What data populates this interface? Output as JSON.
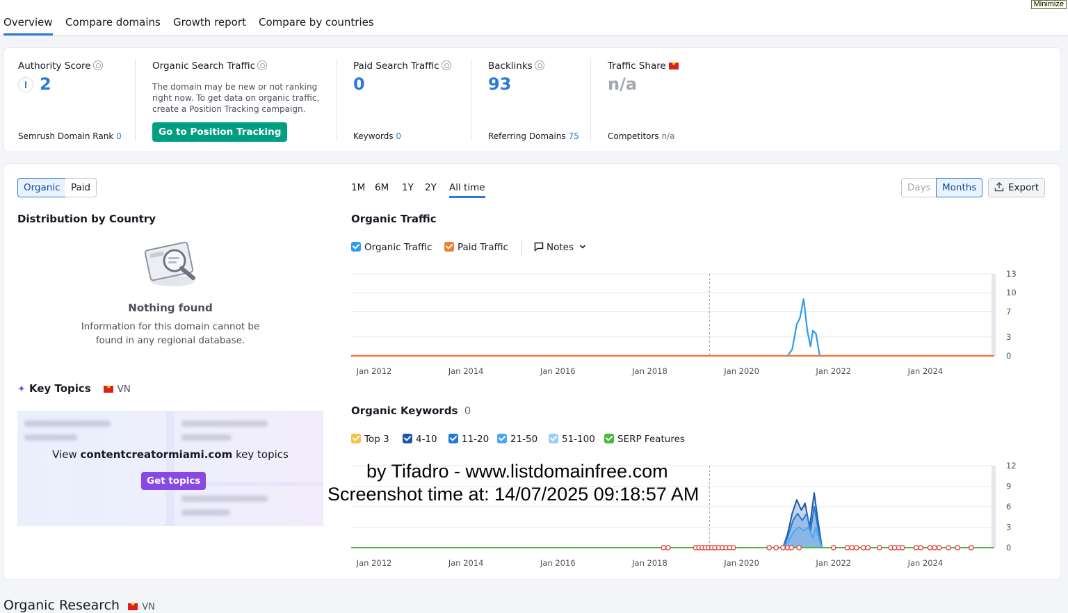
{
  "window": {
    "minimize_label": "Minimize"
  },
  "tabs": [
    {
      "label": "Overview"
    },
    {
      "label": "Compare domains"
    },
    {
      "label": "Growth report"
    },
    {
      "label": "Compare by countries"
    }
  ],
  "metrics": {
    "authority": {
      "label": "Authority Score",
      "value": "2",
      "rank_label": "Semrush Domain Rank",
      "rank_value": "0"
    },
    "organic": {
      "label": "Organic Search Traffic",
      "desc1": "The domain may be new or not ranking",
      "desc2": "right now. To get data on organic traffic,",
      "desc3": "create a Position Tracking campaign.",
      "button": "Go to Position Tracking"
    },
    "paid": {
      "label": "Paid Search Traffic",
      "value": "0",
      "sub_label": "Keywords",
      "sub_value": "0"
    },
    "backlinks": {
      "label": "Backlinks",
      "value": "93",
      "sub_label": "Referring Domains",
      "sub_value": "75"
    },
    "share": {
      "label": "Traffic Share",
      "value": "n/a",
      "sub_label": "Competitors",
      "sub_value": "n/a"
    }
  },
  "toggles": {
    "organic": "Organic",
    "paid": "Paid"
  },
  "periods": [
    "1M",
    "6M",
    "1Y",
    "2Y",
    "All time"
  ],
  "granularity": {
    "days": "Days",
    "months": "Months"
  },
  "export_label": "Export",
  "distribution": {
    "title": "Distribution by Country",
    "empty_title": "Nothing found",
    "empty_line1": "Information for this domain cannot be",
    "empty_line2": "found in any regional database."
  },
  "key_topics": {
    "title": "Key Topics",
    "country": "VN",
    "view_prefix": "View",
    "domain": "contentcreatormiami.com",
    "view_suffix": "key topics",
    "button": "Get topics"
  },
  "organic_traffic": {
    "title": "Organic Traffic",
    "legend_organic": "Organic Traffic",
    "legend_paid": "Paid Traffic",
    "notes": "Notes"
  },
  "organic_keywords": {
    "title": "Organic Keywords",
    "count": "0",
    "legend": [
      "Top 3",
      "4-10",
      "11-20",
      "21-50",
      "51-100",
      "SERP Features"
    ]
  },
  "colors": {
    "accent": "#2c79d8",
    "organic": "#2c9cf0",
    "paid": "#f07d30",
    "top3": "#f6c244",
    "k4_10": "#1b58a8",
    "k11_20": "#2479d6",
    "k21_50": "#4aa6f0",
    "k51_100": "#98cff7",
    "serp": "#46b93a"
  },
  "chart_data": [
    {
      "type": "area",
      "title": "Organic Traffic",
      "xlabel": "",
      "ylabel": "",
      "x_ticks": [
        "Jan 2012",
        "Jan 2014",
        "Jan 2016",
        "Jan 2018",
        "Jan 2020",
        "Jan 2022",
        "Jan 2024"
      ],
      "y_ticks": [
        0,
        3,
        7,
        10,
        13
      ],
      "xlim": [
        2011.5,
        2025.5
      ],
      "ylim": [
        0,
        13
      ],
      "grid": true,
      "series": [
        {
          "name": "Organic Traffic",
          "points": [
            [
              2011.5,
              0
            ],
            [
              2021.0,
              0
            ],
            [
              2021.1,
              1
            ],
            [
              2021.2,
              5
            ],
            [
              2021.27,
              6
            ],
            [
              2021.35,
              9
            ],
            [
              2021.43,
              4
            ],
            [
              2021.5,
              1.5
            ],
            [
              2021.55,
              4
            ],
            [
              2021.62,
              3.5
            ],
            [
              2021.7,
              0
            ],
            [
              2025.5,
              0
            ]
          ]
        },
        {
          "name": "Paid Traffic",
          "points": [
            [
              2011.5,
              0
            ],
            [
              2025.5,
              0
            ]
          ]
        }
      ]
    },
    {
      "type": "area",
      "title": "Organic Keywords",
      "xlabel": "",
      "ylabel": "",
      "x_ticks": [
        "Jan 2012",
        "Jan 2014",
        "Jan 2016",
        "Jan 2018",
        "Jan 2020",
        "Jan 2022",
        "Jan 2024"
      ],
      "y_ticks": [
        0,
        3,
        6,
        9,
        12
      ],
      "xlim": [
        2011.5,
        2025.5
      ],
      "ylim": [
        0,
        12
      ],
      "grid": true,
      "series": [
        {
          "name": "4-10",
          "points": [
            [
              2011.5,
              0
            ],
            [
              2020.9,
              0
            ],
            [
              2021.0,
              2
            ],
            [
              2021.1,
              5
            ],
            [
              2021.2,
              7
            ],
            [
              2021.3,
              5.5
            ],
            [
              2021.38,
              6.5
            ],
            [
              2021.48,
              3
            ],
            [
              2021.58,
              8
            ],
            [
              2021.66,
              4
            ],
            [
              2021.75,
              0
            ],
            [
              2025.5,
              0
            ]
          ]
        },
        {
          "name": "11-20",
          "points": [
            [
              2011.5,
              0
            ],
            [
              2020.9,
              0
            ],
            [
              2021.0,
              1.5
            ],
            [
              2021.12,
              4
            ],
            [
              2021.22,
              5
            ],
            [
              2021.32,
              4
            ],
            [
              2021.42,
              5
            ],
            [
              2021.5,
              2.5
            ],
            [
              2021.58,
              6
            ],
            [
              2021.66,
              3
            ],
            [
              2021.75,
              0
            ],
            [
              2025.5,
              0
            ]
          ]
        },
        {
          "name": "21-50",
          "points": [
            [
              2011.5,
              0
            ],
            [
              2020.9,
              0
            ],
            [
              2021.02,
              1
            ],
            [
              2021.15,
              2.5
            ],
            [
              2021.25,
              3
            ],
            [
              2021.35,
              2.5
            ],
            [
              2021.45,
              3
            ],
            [
              2021.55,
              1.5
            ],
            [
              2021.62,
              3
            ],
            [
              2021.7,
              1
            ],
            [
              2021.75,
              0
            ],
            [
              2025.5,
              0
            ]
          ]
        },
        {
          "name": "SERP Features",
          "points": [
            [
              2011.5,
              0
            ],
            [
              2025.5,
              0
            ]
          ]
        }
      ]
    }
  ],
  "footer": {
    "title": "Organic Research",
    "country": "VN"
  },
  "overlay": {
    "line1": "by Tifadro - www.listdomainfree.com",
    "line2": "Screenshot time at: 14/07/2025 09:18:57 AM"
  }
}
